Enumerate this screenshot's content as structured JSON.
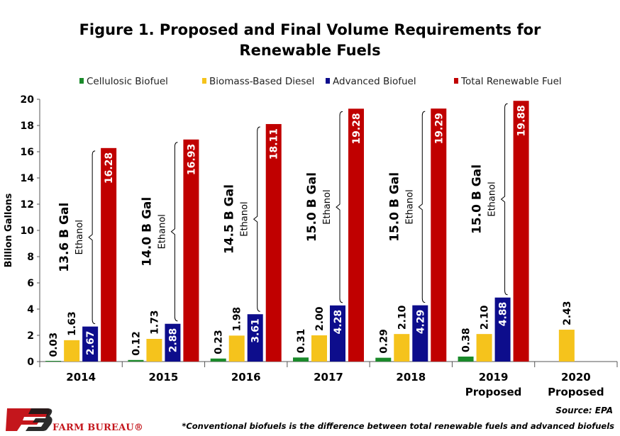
{
  "colors": {
    "cellulosic": "#1a8a2a",
    "biomass": "#f5c31c",
    "advanced": "#0d0d8c",
    "total": "#c00000",
    "brand": "#c4161c"
  },
  "chart_data": {
    "type": "bar",
    "title": "Figure 1. Proposed and Final Volume Requirements for Renewable Fuels",
    "title_lines": [
      "Figure 1. Proposed and Final Volume Requirements for",
      "Renewable Fuels"
    ],
    "ylabel": "Billion Gallons",
    "ylim": [
      0,
      20
    ],
    "yticks": [
      0,
      2,
      4,
      6,
      8,
      10,
      12,
      14,
      16,
      18,
      20
    ],
    "legend_position": "top",
    "grid": false,
    "categories": [
      [
        "2014"
      ],
      [
        "2015"
      ],
      [
        "2016"
      ],
      [
        "2017"
      ],
      [
        "2018"
      ],
      [
        "2019",
        "Proposed"
      ],
      [
        "2020",
        "Proposed"
      ]
    ],
    "series": [
      {
        "name": "Cellulosic Biofuel",
        "key": "cellulosic",
        "values": [
          0.03,
          0.12,
          0.23,
          0.31,
          0.29,
          0.38,
          null
        ],
        "labels": [
          "0.03",
          "0.12",
          "0.23",
          "0.31",
          "0.29",
          "0.38",
          ""
        ]
      },
      {
        "name": "Biomass-Based Diesel",
        "key": "biomass",
        "values": [
          1.63,
          1.73,
          1.98,
          2.0,
          2.1,
          2.1,
          2.43
        ],
        "labels": [
          "1.63",
          "1.73",
          "1.98",
          "2.00",
          "2.10",
          "2.10",
          "2.43"
        ]
      },
      {
        "name": "Advanced Biofuel",
        "key": "advanced",
        "values": [
          2.67,
          2.88,
          3.61,
          4.28,
          4.29,
          4.88,
          null
        ],
        "labels": [
          "2.67",
          "2.88",
          "3.61",
          "4.28",
          "4.29",
          "4.88",
          ""
        ]
      },
      {
        "name": "Total Renewable Fuel",
        "key": "total",
        "values": [
          16.28,
          16.93,
          18.11,
          19.28,
          19.29,
          19.88,
          null
        ],
        "labels": [
          "16.28",
          "16.93",
          "18.11",
          "19.28",
          "19.29",
          "19.88",
          ""
        ]
      }
    ],
    "annotations": [
      {
        "category": "2014",
        "value": "13.6 B Gal",
        "sub": "Ethanol"
      },
      {
        "category": "2015",
        "value": "14.0 B Gal",
        "sub": "Ethanol"
      },
      {
        "category": "2016",
        "value": "14.5 B Gal",
        "sub": "Ethanol"
      },
      {
        "category": "2017",
        "value": "15.0 B Gal",
        "sub": "Ethanol"
      },
      {
        "category": "2018",
        "value": "15.0 B Gal",
        "sub": "Ethanol"
      },
      {
        "category": "2019",
        "value": "15.0 B Gal",
        "sub": "Ethanol"
      }
    ]
  },
  "source": "Source: EPA",
  "footnote": "*Conventional biofuels is the difference between total renewable fuels and advanced biofuels",
  "logo": {
    "text": "FARM BUREAU®"
  }
}
